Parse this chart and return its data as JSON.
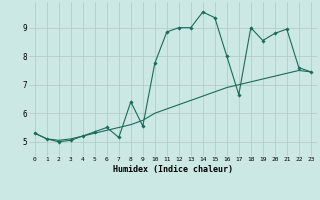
{
  "xlabel": "Humidex (Indice chaleur)",
  "bg_color": "#cce8e4",
  "grid_color": "#b0c8c4",
  "line_color": "#1a6b5a",
  "xlim": [
    -0.5,
    23.5
  ],
  "ylim": [
    4.5,
    9.9
  ],
  "x_ticks": [
    0,
    1,
    2,
    3,
    4,
    5,
    6,
    7,
    8,
    9,
    10,
    11,
    12,
    13,
    14,
    15,
    16,
    17,
    18,
    19,
    20,
    21,
    22,
    23
  ],
  "y_ticks": [
    5,
    6,
    7,
    8,
    9
  ],
  "line1_x": [
    0,
    1,
    2,
    3,
    4,
    5,
    6,
    7,
    8,
    9,
    10,
    11,
    12,
    13,
    14,
    15,
    16,
    17,
    18,
    19,
    20,
    21,
    22,
    23
  ],
  "line1_y": [
    5.3,
    5.1,
    5.0,
    5.05,
    5.2,
    5.35,
    5.5,
    5.15,
    6.4,
    5.55,
    7.75,
    8.85,
    9.0,
    9.0,
    9.55,
    9.35,
    8.0,
    6.65,
    9.0,
    8.55,
    8.8,
    8.95,
    7.6,
    7.45
  ],
  "line2_x": [
    0,
    1,
    2,
    3,
    4,
    5,
    6,
    7,
    8,
    9,
    10,
    11,
    12,
    13,
    14,
    15,
    16,
    17,
    18,
    19,
    20,
    21,
    22,
    23
  ],
  "line2_y": [
    5.3,
    5.1,
    5.05,
    5.1,
    5.2,
    5.3,
    5.4,
    5.5,
    5.6,
    5.75,
    6.0,
    6.15,
    6.3,
    6.45,
    6.6,
    6.75,
    6.9,
    7.0,
    7.1,
    7.2,
    7.3,
    7.4,
    7.5,
    7.45
  ]
}
